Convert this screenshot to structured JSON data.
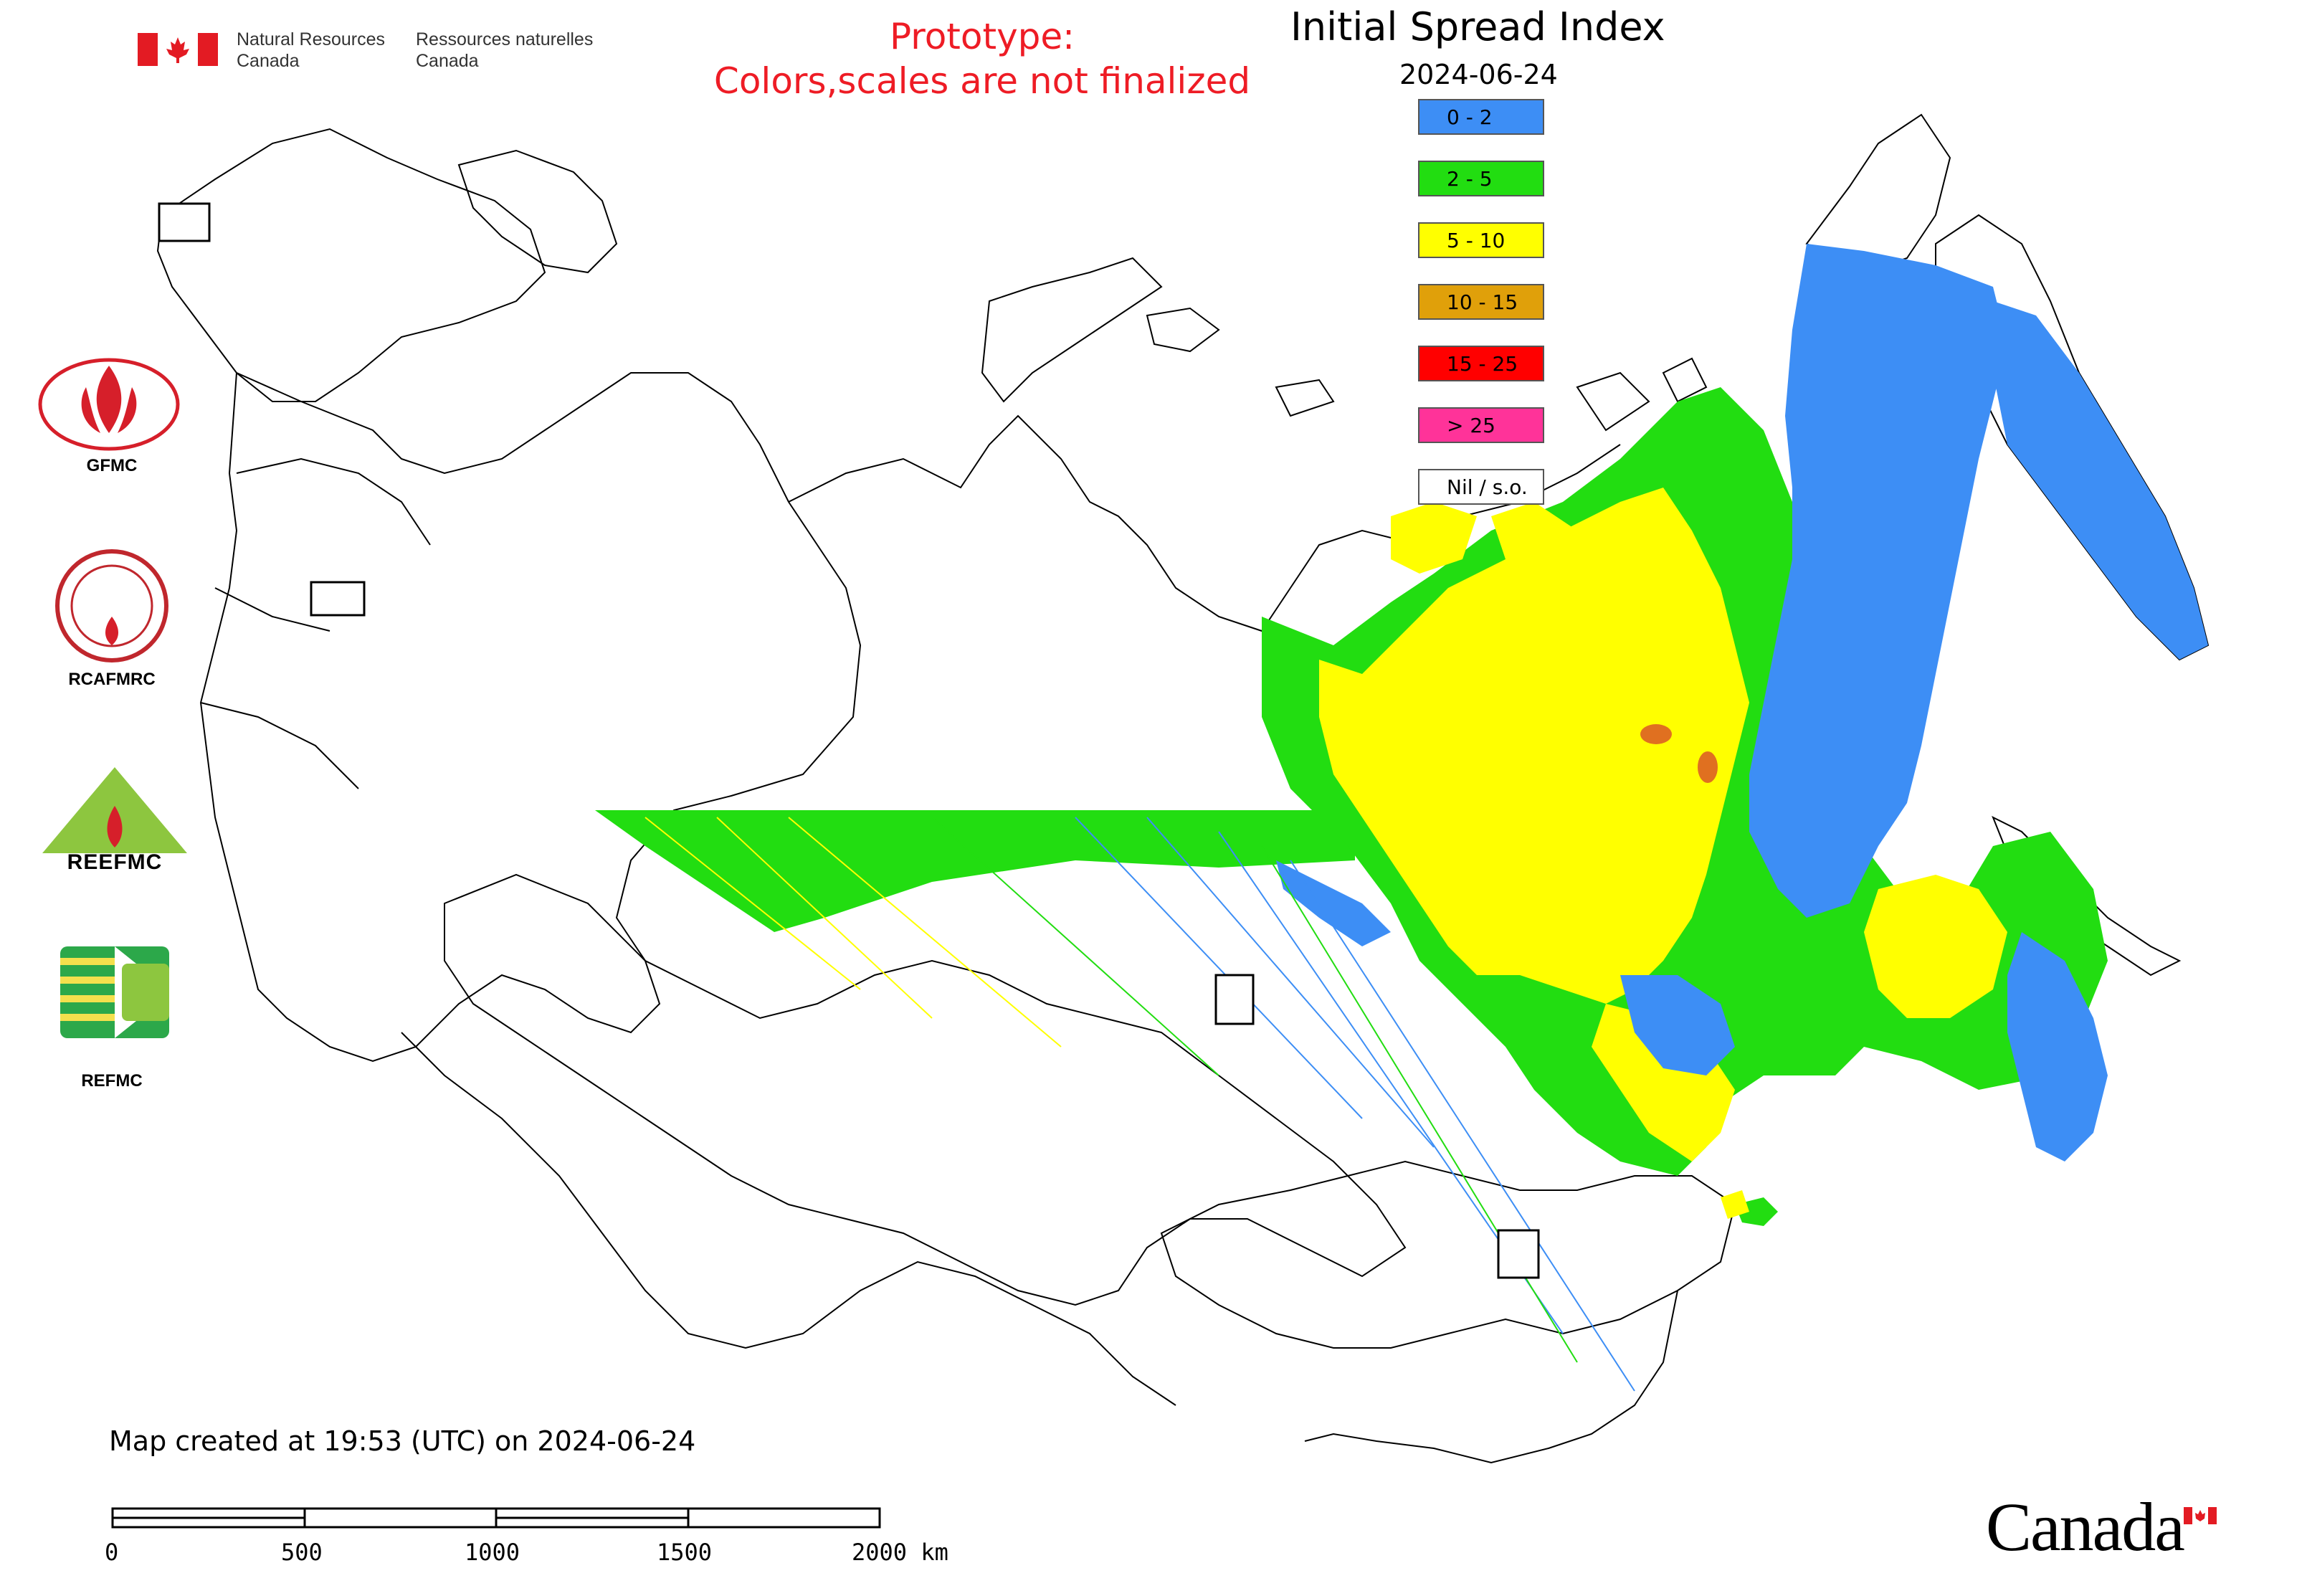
{
  "header": {
    "nrcan_en_line1": "Natural Resources",
    "nrcan_en_line2": "Canada",
    "nrcan_fr_line1": "Ressources naturelles",
    "nrcan_fr_line2": "Canada",
    "prototype_line1": "Prototype:",
    "prototype_line2": "Colors,scales are not finalized"
  },
  "map": {
    "title": "Initial Spread Index",
    "date": "2024-06-24",
    "legend": [
      {
        "label": "0 - 2",
        "color": "#3d8ef5"
      },
      {
        "label": "2 - 5",
        "color": "#22dd11"
      },
      {
        "label": "5 - 10",
        "color": "#ffff00"
      },
      {
        "label": "10 - 15",
        "color": "#e0a00a"
      },
      {
        "label": "15 - 25",
        "color": "#ff0000"
      },
      {
        "label": "> 25",
        "color": "#ff3399"
      },
      {
        "label": "Nil / s.o.",
        "color": "#ffffff"
      }
    ],
    "footer_created": "Map created at 19:53 (UTC) on 2024-06-24",
    "scale_labels": [
      "0",
      "500",
      "1000",
      "1500",
      "2000 km"
    ]
  },
  "logos": {
    "gfmc": "GFMC",
    "rcafmrc": "RCAFMRC",
    "reefmc": "REEFMC",
    "refmc": "REFMC"
  },
  "wordmark": "Canada"
}
